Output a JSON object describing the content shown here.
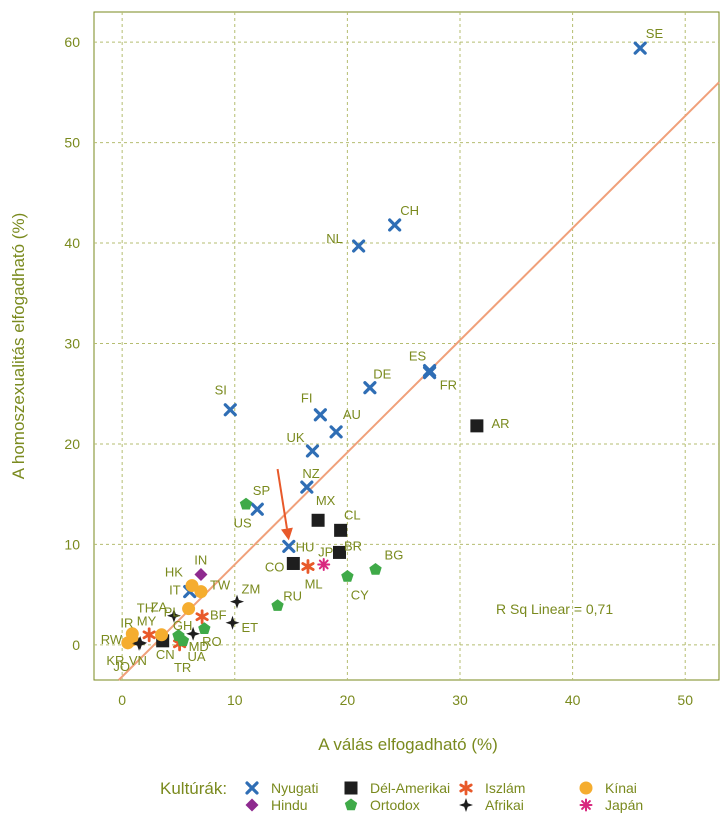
{
  "chart_data": {
    "type": "scatter",
    "xlabel": "A válás elfogadható (%)",
    "ylabel": "A homoszexualitás elfogadható (%)",
    "xlim": [
      -2.5,
      53
    ],
    "ylim": [
      -3.5,
      63
    ],
    "xticks": [
      0,
      10,
      20,
      30,
      40,
      50
    ],
    "yticks": [
      0,
      10,
      20,
      30,
      40,
      50,
      60
    ],
    "grid": true,
    "annotation": "R Sq Linear = 0,71",
    "trendline": {
      "x1": -0.3,
      "y1": -3.5,
      "x2": 53,
      "y2": 56
    },
    "arrow": {
      "from": [
        13.8,
        17.5
      ],
      "to": [
        14.8,
        10.4
      ]
    },
    "legend_title": "Kultúrák:",
    "legend_position": "bottom",
    "groups": [
      {
        "key": "nyugati",
        "name": "Nyugati",
        "color": "#2f6eb5",
        "marker": "x"
      },
      {
        "key": "delamerikai",
        "name": "Dél-Amerikai",
        "color": "#1e1e1e",
        "marker": "square"
      },
      {
        "key": "iszlam",
        "name": "Iszlám",
        "color": "#e8592a",
        "marker": "star"
      },
      {
        "key": "kinai",
        "name": "Kínai",
        "color": "#f5ad2f",
        "marker": "circle"
      },
      {
        "key": "hindu",
        "name": "Hindu",
        "color": "#8e2a8f",
        "marker": "diamond"
      },
      {
        "key": "ortodox",
        "name": "Ortodox",
        "color": "#3faa48",
        "marker": "pentagon"
      },
      {
        "key": "afrikai",
        "name": "Afrikai",
        "color": "#1e1e1e",
        "marker": "cross4"
      },
      {
        "key": "japan",
        "name": "Japán",
        "color": "#d9287f",
        "marker": "asterisk"
      }
    ],
    "points": [
      {
        "label": "SE",
        "group": "nyugati",
        "x": 46,
        "y": 59.4,
        "lx": 0.5,
        "ly": 1.4,
        "anchor": "start"
      },
      {
        "label": "CH",
        "group": "nyugati",
        "x": 24.2,
        "y": 41.8,
        "lx": 0.5,
        "ly": 1.4,
        "anchor": "start"
      },
      {
        "label": "NL",
        "group": "nyugati",
        "x": 21,
        "y": 39.7,
        "lx": -1.4,
        "ly": 0.7,
        "anchor": "end"
      },
      {
        "label": "ES",
        "group": "nyugati",
        "x": 27.3,
        "y": 27.3,
        "lx": -0.3,
        "ly": 1.4,
        "anchor": "end"
      },
      {
        "label": "FR",
        "group": "nyugati",
        "x": 27.3,
        "y": 27.1,
        "lx": 0.9,
        "ly": -1.3,
        "anchor": "start"
      },
      {
        "label": "DE",
        "group": "nyugati",
        "x": 22,
        "y": 25.6,
        "lx": 0.3,
        "ly": 1.3,
        "anchor": "start"
      },
      {
        "label": "AU",
        "group": "nyugati",
        "x": 19,
        "y": 21.2,
        "lx": 0.6,
        "ly": 1.7,
        "anchor": "start"
      },
      {
        "label": "FI",
        "group": "nyugati",
        "x": 17.6,
        "y": 22.9,
        "lx": -0.7,
        "ly": 1.6,
        "anchor": "end"
      },
      {
        "label": "SI",
        "group": "nyugati",
        "x": 9.6,
        "y": 23.4,
        "lx": -0.3,
        "ly": 1.9,
        "anchor": "end"
      },
      {
        "label": "UK",
        "group": "nyugati",
        "x": 16.9,
        "y": 19.3,
        "lx": -0.7,
        "ly": 1.3,
        "anchor": "end"
      },
      {
        "label": "NZ",
        "group": "nyugati",
        "x": 16.4,
        "y": 15.7,
        "lx": -0.4,
        "ly": 1.3,
        "anchor": "start"
      },
      {
        "label": "US",
        "group": "nyugati",
        "x": 12,
        "y": 13.5,
        "lx": -0.5,
        "ly": -1.4,
        "anchor": "end"
      },
      {
        "label": "HU",
        "group": "nyugati",
        "x": 14.8,
        "y": 9.8,
        "lx": 0.6,
        "ly": -0.1,
        "anchor": "start"
      },
      {
        "label": "IT",
        "group": "nyugati",
        "x": 6,
        "y": 5.3,
        "lx": -0.8,
        "ly": 0.1,
        "anchor": "end"
      },
      {
        "label": "AR",
        "group": "delamerikai",
        "x": 31.5,
        "y": 21.8,
        "lx": 1.3,
        "ly": 0.2,
        "anchor": "start"
      },
      {
        "label": "MX",
        "group": "delamerikai",
        "x": 17.4,
        "y": 12.4,
        "lx": -0.2,
        "ly": 1.9,
        "anchor": "start"
      },
      {
        "label": "CL",
        "group": "delamerikai",
        "x": 19.4,
        "y": 11.4,
        "lx": 0.3,
        "ly": 1.5,
        "anchor": "start"
      },
      {
        "label": "BR",
        "group": "delamerikai",
        "x": 19.3,
        "y": 9.2,
        "lx": 0.4,
        "ly": 0.6,
        "anchor": "start"
      },
      {
        "label": "CO",
        "group": "delamerikai",
        "x": 15.2,
        "y": 8.1,
        "lx": -0.8,
        "ly": -0.4,
        "anchor": "end"
      },
      {
        "label": "CN",
        "group": "delamerikai",
        "x": 3.6,
        "y": 0.4,
        "lx": -0.6,
        "ly": -1.4,
        "anchor": "start"
      },
      {
        "label": "ML",
        "group": "iszlam",
        "x": 16.5,
        "y": 7.8,
        "lx": -0.3,
        "ly": -1.8,
        "anchor": "start"
      },
      {
        "label": "BF",
        "group": "iszlam",
        "x": 7.1,
        "y": 2.8,
        "lx": 0.7,
        "ly": 0.1,
        "anchor": "start"
      },
      {
        "label": "MY",
        "group": "iszlam",
        "x": 2.4,
        "y": 1.0,
        "lx": -1.1,
        "ly": 1.3,
        "anchor": "start"
      },
      {
        "label": "TR",
        "group": "iszlam",
        "x": 5.1,
        "y": 0.1,
        "lx": -0.5,
        "ly": -2.4,
        "anchor": "start"
      },
      {
        "label": "HK",
        "group": "kinai",
        "x": 6.2,
        "y": 5.9,
        "lx": -0.8,
        "ly": 1.3,
        "anchor": "end"
      },
      {
        "label": "TW",
        "group": "kinai",
        "x": 7,
        "y": 5.3,
        "lx": 0.8,
        "ly": 0.6,
        "anchor": "start"
      },
      {
        "label": "PL",
        "group": "kinai",
        "x": 5.9,
        "y": 3.6,
        "lx": -0.8,
        "ly": -0.4,
        "anchor": "end"
      },
      {
        "label": "RW",
        "group": "kinai",
        "x": 0.9,
        "y": 1.1,
        "lx": -0.9,
        "ly": -0.6,
        "anchor": "end"
      },
      {
        "label": "IR",
        "group": "kinai",
        "x": 0.9,
        "y": 0.5,
        "lx": 0.1,
        "ly": 1.6,
        "anchor": "end"
      },
      {
        "label": "KR",
        "group": "kinai",
        "x": 0.5,
        "y": 0.2,
        "lx": -0.3,
        "ly": -1.8,
        "anchor": "end"
      },
      {
        "label": "VN",
        "group": "kinai",
        "x": 3.5,
        "y": 1.0,
        "lx": -1.3,
        "ly": -2.6,
        "anchor": "end"
      },
      {
        "label": "IN",
        "group": "hindu",
        "x": 7,
        "y": 7.0,
        "lx": -0.6,
        "ly": 1.4,
        "anchor": "start"
      },
      {
        "label": "SP",
        "group": "ortodox",
        "x": 11,
        "y": 14.0,
        "lx": 0.6,
        "ly": 1.3,
        "anchor": "start"
      },
      {
        "label": "BG",
        "group": "ortodox",
        "x": 22.5,
        "y": 7.5,
        "lx": 0.8,
        "ly": 1.4,
        "anchor": "start"
      },
      {
        "label": "CY",
        "group": "ortodox",
        "x": 20,
        "y": 6.8,
        "lx": 0.3,
        "ly": -1.9,
        "anchor": "start"
      },
      {
        "label": "RU",
        "group": "ortodox",
        "x": 13.8,
        "y": 3.9,
        "lx": 0.5,
        "ly": 0.9,
        "anchor": "start"
      },
      {
        "label": "RO",
        "group": "ortodox",
        "x": 7.3,
        "y": 1.6,
        "lx": -0.2,
        "ly": -1.3,
        "anchor": "start"
      },
      {
        "label": "GH",
        "group": "ortodox",
        "x": 5,
        "y": 0.9,
        "lx": -0.5,
        "ly": 1.0,
        "anchor": "start"
      },
      {
        "label": "MD",
        "group": "ortodox",
        "x": 5.4,
        "y": 0.4,
        "lx": 0.5,
        "ly": -0.6,
        "anchor": "start"
      },
      {
        "label": "ZM",
        "group": "afrikai",
        "x": 10.2,
        "y": 4.3,
        "lx": 0.4,
        "ly": 1.2,
        "anchor": "start"
      },
      {
        "label": "ZA",
        "group": "afrikai",
        "x": 4.6,
        "y": 2.9,
        "lx": -0.6,
        "ly": 0.8,
        "anchor": "end"
      },
      {
        "label": "ET",
        "group": "afrikai",
        "x": 9.8,
        "y": 2.2,
        "lx": 0.8,
        "ly": -0.5,
        "anchor": "start"
      },
      {
        "label": "UA",
        "group": "afrikai",
        "x": 6.3,
        "y": 1.1,
        "lx": -0.5,
        "ly": -2.3,
        "anchor": "start"
      },
      {
        "label": "TH",
        "group": "afrikai",
        "x": 1.6,
        "y": 0.2,
        "lx": -0.3,
        "ly": 3.4,
        "anchor": "start"
      },
      {
        "label": "JO",
        "group": "afrikai",
        "x": 1.5,
        "y": 0.1,
        "lx": -0.8,
        "ly": -2.3,
        "anchor": "end"
      },
      {
        "label": "JP",
        "group": "japan",
        "x": 17.9,
        "y": 8.0,
        "lx": -0.5,
        "ly": 1.2,
        "anchor": "start"
      }
    ]
  }
}
